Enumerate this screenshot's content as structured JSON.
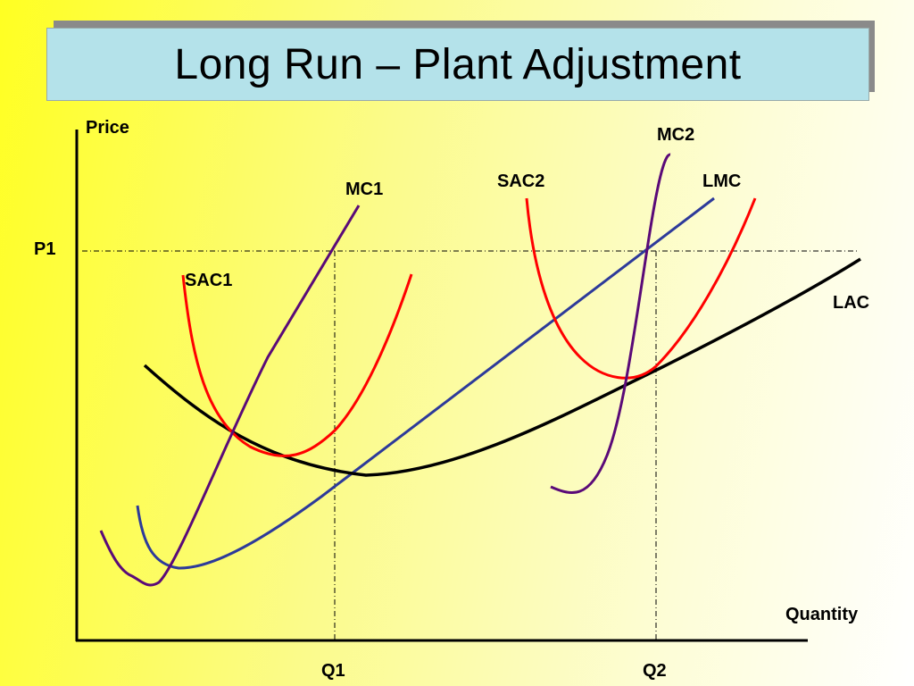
{
  "title": "Long Run – Plant Adjustment",
  "axes": {
    "y_label": "Price",
    "x_label": "Quantity"
  },
  "ticks": {
    "p1": "P1",
    "q1": "Q1",
    "q2": "Q2"
  },
  "curves": {
    "mc1": "MC1",
    "mc2": "MC2",
    "sac1": "SAC1",
    "sac2": "SAC2",
    "lmc": "LMC",
    "lac": "LAC"
  },
  "colors": {
    "sac": "#ff0000",
    "mc": "#5a0a78",
    "lmc": "#2d3a9a",
    "lac": "#000000",
    "title_bg": "#b4e2ea"
  }
}
